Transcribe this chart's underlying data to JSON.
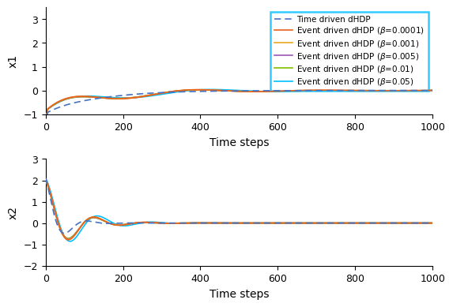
{
  "xlabel": "Time steps",
  "ylabel1": "x1",
  "ylabel2": "x2",
  "xlim": [
    0,
    1000
  ],
  "ylim1": [
    -1,
    3.5
  ],
  "ylim2": [
    -2,
    3
  ],
  "yticks1": [
    -1,
    0,
    1,
    2,
    3
  ],
  "yticks2": [
    -2,
    -1,
    0,
    1,
    2,
    3
  ],
  "xticks": [
    0,
    200,
    400,
    600,
    800,
    1000
  ],
  "n_steps": 1001,
  "time_driven_color": "#4472C4",
  "event_colors": [
    "#E8621A",
    "#E8A820",
    "#9B59B6",
    "#7FBF00",
    "#00BFFF"
  ],
  "line_width": 1.2,
  "legend_fontsize": 7.5,
  "axis_fontsize": 10,
  "tick_fontsize": 9
}
